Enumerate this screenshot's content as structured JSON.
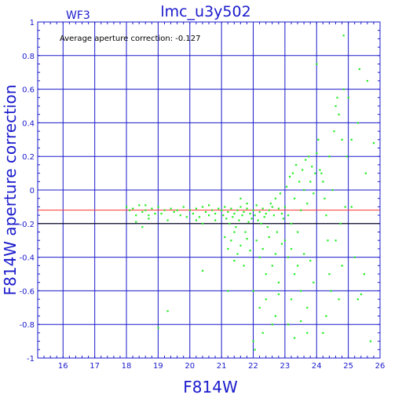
{
  "chart_data": {
    "type": "scatter",
    "title": "lmc_u3y502",
    "panel_label": "WF3",
    "annotation": "Average aperture correction: -0.127",
    "xlabel": "F814W",
    "ylabel": "F814W aperture correction",
    "xlim": [
      15.2,
      26
    ],
    "ylim": [
      -1,
      1
    ],
    "x_ticks": [
      "16",
      "17",
      "18",
      "19",
      "20",
      "21",
      "22",
      "23",
      "24",
      "25",
      "26"
    ],
    "y_ticks": [
      "-1",
      "-0.8",
      "-0.6",
      "-0.4",
      "-0.2",
      "0",
      "0.2",
      "0.4",
      "0.6",
      "0.8",
      "1"
    ],
    "grid": true,
    "reference_lines": [
      {
        "y": -0.12,
        "color": "#ff3333",
        "label": ""
      },
      {
        "y": -0.2,
        "color": "#000000",
        "label": ""
      }
    ],
    "colors": {
      "frame": "#1a1acc",
      "points": "#22ee22",
      "reference": "#ff3333"
    },
    "series": [
      {
        "values": [
          [
            18.0,
            -0.1
          ],
          [
            18.1,
            -0.12
          ],
          [
            18.2,
            -0.11
          ],
          [
            18.3,
            -0.15
          ],
          [
            18.4,
            -0.09
          ],
          [
            18.5,
            -0.13
          ],
          [
            18.6,
            -0.12
          ],
          [
            18.7,
            -0.17
          ],
          [
            18.5,
            -0.22
          ],
          [
            18.8,
            -0.11
          ],
          [
            18.9,
            -0.14
          ],
          [
            18.3,
            -0.19
          ],
          [
            18.6,
            -0.09
          ],
          [
            18.7,
            -0.15
          ],
          [
            19.0,
            -0.1
          ],
          [
            19.1,
            -0.14
          ],
          [
            19.2,
            -0.12
          ],
          [
            19.3,
            -0.18
          ],
          [
            19.4,
            -0.11
          ],
          [
            19.5,
            -0.13
          ],
          [
            19.6,
            -0.12
          ],
          [
            19.7,
            -0.15
          ],
          [
            19.8,
            -0.1
          ],
          [
            19.9,
            -0.16
          ],
          [
            19.3,
            -0.72
          ],
          [
            19.0,
            -0.82
          ],
          [
            20.0,
            -0.12
          ],
          [
            20.1,
            -0.14
          ],
          [
            20.2,
            -0.11
          ],
          [
            20.3,
            -0.16
          ],
          [
            20.4,
            -0.1
          ],
          [
            20.5,
            -0.13
          ],
          [
            20.6,
            -0.15
          ],
          [
            20.7,
            -0.12
          ],
          [
            20.8,
            -0.18
          ],
          [
            20.9,
            -0.11
          ],
          [
            20.2,
            -0.18
          ],
          [
            20.4,
            -0.2
          ],
          [
            20.6,
            -0.09
          ],
          [
            20.8,
            -0.14
          ],
          [
            21.0,
            -0.12
          ],
          [
            21.05,
            -0.15
          ],
          [
            21.1,
            -0.1
          ],
          [
            21.15,
            -0.17
          ],
          [
            21.2,
            -0.13
          ],
          [
            21.25,
            -0.2
          ],
          [
            21.3,
            -0.11
          ],
          [
            21.35,
            -0.16
          ],
          [
            21.4,
            -0.14
          ],
          [
            21.45,
            -0.22
          ],
          [
            21.5,
            -0.12
          ],
          [
            21.55,
            -0.18
          ],
          [
            21.6,
            -0.1
          ],
          [
            21.65,
            -0.15
          ],
          [
            21.7,
            -0.13
          ],
          [
            21.75,
            -0.25
          ],
          [
            21.8,
            -0.11
          ],
          [
            21.85,
            -0.19
          ],
          [
            21.9,
            -0.14
          ],
          [
            21.95,
            -0.17
          ],
          [
            21.1,
            -0.28
          ],
          [
            21.2,
            -0.35
          ],
          [
            21.3,
            -0.3
          ],
          [
            21.4,
            -0.42
          ],
          [
            21.5,
            -0.38
          ],
          [
            21.6,
            -0.33
          ],
          [
            21.7,
            -0.45
          ],
          [
            21.8,
            -0.29
          ],
          [
            21.9,
            -0.36
          ],
          [
            21.4,
            -0.25
          ],
          [
            21.6,
            -0.05
          ],
          [
            21.8,
            -0.08
          ],
          [
            20.4,
            -0.48
          ],
          [
            21.2,
            -0.6
          ],
          [
            22.0,
            -0.12
          ],
          [
            22.05,
            -0.15
          ],
          [
            22.1,
            -0.09
          ],
          [
            22.15,
            -0.18
          ],
          [
            22.2,
            -0.13
          ],
          [
            22.25,
            -0.2
          ],
          [
            22.3,
            -0.11
          ],
          [
            22.35,
            -0.16
          ],
          [
            22.4,
            -0.14
          ],
          [
            22.45,
            -0.22
          ],
          [
            22.5,
            -0.12
          ],
          [
            22.55,
            -0.08
          ],
          [
            22.6,
            -0.1
          ],
          [
            22.65,
            -0.15
          ],
          [
            22.7,
            -0.05
          ],
          [
            22.75,
            -0.25
          ],
          [
            22.8,
            -0.11
          ],
          [
            22.85,
            -0.02
          ],
          [
            22.9,
            -0.14
          ],
          [
            22.95,
            -0.17
          ],
          [
            22.1,
            -0.3
          ],
          [
            22.2,
            -0.4
          ],
          [
            22.3,
            -0.35
          ],
          [
            22.4,
            -0.5
          ],
          [
            22.5,
            -0.28
          ],
          [
            22.6,
            -0.45
          ],
          [
            22.7,
            -0.38
          ],
          [
            22.8,
            -0.55
          ],
          [
            22.9,
            -0.32
          ],
          [
            22.0,
            -0.6
          ],
          [
            22.2,
            -0.7
          ],
          [
            22.4,
            -0.65
          ],
          [
            22.6,
            -0.8
          ],
          [
            22.8,
            -0.62
          ],
          [
            22.0,
            -0.9
          ],
          [
            22.05,
            -0.95
          ],
          [
            22.3,
            -0.85
          ],
          [
            22.7,
            -0.75
          ],
          [
            23.0,
            -0.1
          ],
          [
            23.05,
            0.02
          ],
          [
            23.1,
            -0.15
          ],
          [
            23.15,
            0.08
          ],
          [
            23.2,
            -0.2
          ],
          [
            23.25,
            0.1
          ],
          [
            23.3,
            -0.05
          ],
          [
            23.35,
            0.15
          ],
          [
            23.4,
            -0.25
          ],
          [
            23.45,
            0.05
          ],
          [
            23.5,
            -0.12
          ],
          [
            23.55,
            0.12
          ],
          [
            23.6,
            0.0
          ],
          [
            23.65,
            0.18
          ],
          [
            23.7,
            -0.08
          ],
          [
            23.75,
            0.2
          ],
          [
            23.8,
            0.05
          ],
          [
            23.85,
            0.14
          ],
          [
            23.9,
            -0.02
          ],
          [
            23.95,
            0.1
          ],
          [
            23.0,
            -0.3
          ],
          [
            23.1,
            -0.4
          ],
          [
            23.2,
            -0.35
          ],
          [
            23.3,
            -0.5
          ],
          [
            23.4,
            -0.45
          ],
          [
            23.5,
            -0.6
          ],
          [
            23.6,
            -0.38
          ],
          [
            23.7,
            -0.7
          ],
          [
            23.8,
            -0.42
          ],
          [
            23.9,
            -0.55
          ],
          [
            23.1,
            -0.8
          ],
          [
            23.3,
            -0.88
          ],
          [
            23.5,
            -0.78
          ],
          [
            23.7,
            -0.85
          ],
          [
            23.2,
            -0.65
          ],
          [
            24.0,
            0.22
          ],
          [
            24.05,
            0.3
          ],
          [
            24.1,
            0.12
          ],
          [
            24.15,
            0.1
          ],
          [
            24.2,
            0.05
          ],
          [
            24.25,
            -0.05
          ],
          [
            24.3,
            -0.15
          ],
          [
            24.35,
            -0.3
          ],
          [
            24.4,
            -0.5
          ],
          [
            24.45,
            -0.6
          ],
          [
            24.5,
            0.0
          ],
          [
            24.55,
            0.35
          ],
          [
            24.6,
            0.5
          ],
          [
            24.65,
            0.55
          ],
          [
            24.7,
            0.45
          ],
          [
            24.75,
            -0.2
          ],
          [
            24.8,
            0.3
          ],
          [
            24.85,
            0.6
          ],
          [
            24.9,
            -0.1
          ],
          [
            24.95,
            0.2
          ],
          [
            24.0,
            0.75
          ],
          [
            24.3,
            -0.75
          ],
          [
            24.4,
            0.2
          ],
          [
            24.6,
            -0.3
          ],
          [
            24.8,
            -0.45
          ],
          [
            24.7,
            -0.65
          ],
          [
            24.2,
            -0.85
          ],
          [
            25.0,
            0.55
          ],
          [
            25.1,
            0.3
          ],
          [
            25.2,
            -0.4
          ],
          [
            25.3,
            -0.65
          ],
          [
            25.4,
            -0.62
          ],
          [
            25.5,
            -0.5
          ],
          [
            25.6,
            0.65
          ],
          [
            25.7,
            -0.9
          ],
          [
            25.8,
            0.28
          ],
          [
            25.35,
            0.72
          ],
          [
            25.55,
            0.1
          ],
          [
            24.85,
            0.92
          ],
          [
            25.1,
            -0.1
          ],
          [
            25.3,
            0.4
          ]
        ]
      }
    ]
  }
}
